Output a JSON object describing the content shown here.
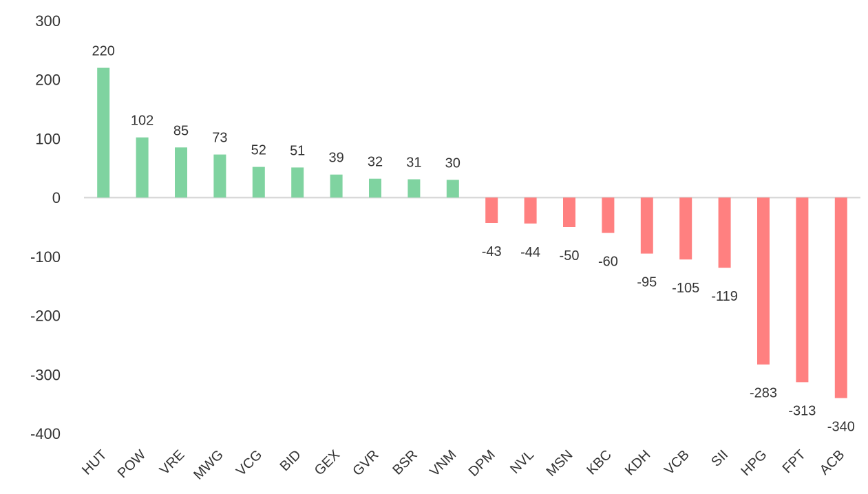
{
  "chart_data": {
    "type": "bar",
    "title": "",
    "xlabel": "",
    "ylabel": "",
    "categories": [
      "HUT",
      "POW",
      "VRE",
      "MWG",
      "VCG",
      "BID",
      "GEX",
      "GVR",
      "BSR",
      "VNM",
      "DPM",
      "NVL",
      "MSN",
      "KBC",
      "KDH",
      "VCB",
      "SII",
      "HPG",
      "FPT",
      "ACB"
    ],
    "values": [
      220,
      102,
      85,
      73,
      52,
      51,
      39,
      32,
      31,
      30,
      -43,
      -44,
      -50,
      -60,
      -95,
      -105,
      -119,
      -283,
      -313,
      -340
    ],
    "data_labels": [
      "220",
      "102",
      "85",
      "73",
      "52",
      "51",
      "39",
      "32",
      "31",
      "30",
      "-43",
      "-44",
      "-50",
      "-60",
      "-95",
      "-105",
      "-119",
      "-283",
      "-313",
      "-340"
    ],
    "yticks": [
      300,
      200,
      100,
      0,
      -100,
      -200,
      -300,
      -400
    ],
    "ytick_labels": [
      "300",
      "200",
      "100",
      "0",
      "-100",
      "-200",
      "-300",
      "-400"
    ],
    "ylim": [
      -400,
      300
    ],
    "grid": false,
    "legend": "none",
    "colors": {
      "positive": "#7fd3a0",
      "negative": "#ff8080",
      "zero_line": "#d9d9d9",
      "text": "#333333"
    }
  }
}
